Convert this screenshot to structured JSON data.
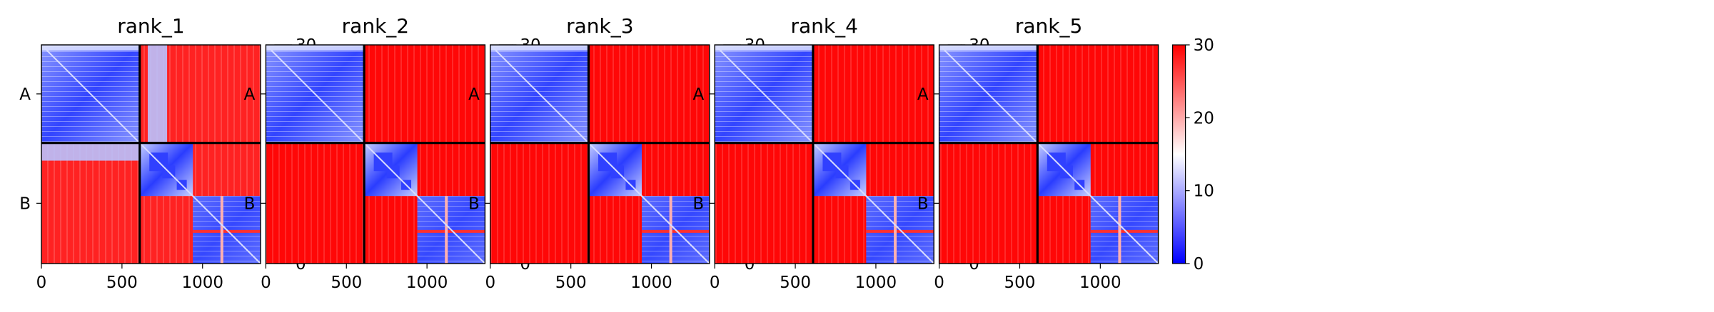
{
  "chart_data": [
    {
      "type": "heatmap",
      "title": "rank_1",
      "x_ticks": [
        0,
        500,
        1000
      ],
      "xlim": [
        0,
        1360
      ],
      "chain_labels": [
        "A",
        "B"
      ],
      "chain_boundary": 610,
      "chain_b_domains": [
        [
          610,
          940
        ],
        [
          940,
          1360
        ]
      ],
      "colorbar": {
        "range": [
          0,
          30
        ],
        "ticks": [
          0,
          10,
          20,
          30
        ],
        "colors": [
          "#0000ff",
          "#ffffff",
          "#ff0000"
        ]
      },
      "inter_chain_mean": 25,
      "strong_interface": [
        {
          "rows": [
            610,
            720
          ],
          "cols": [
            0,
            610
          ]
        },
        {
          "rows": [
            0,
            610
          ],
          "cols": [
            660,
            780
          ]
        }
      ]
    },
    {
      "type": "heatmap",
      "title": "rank_2",
      "x_ticks": [
        0,
        500,
        1000
      ],
      "xlim": [
        0,
        1360
      ],
      "chain_labels": [
        "A",
        "B"
      ],
      "chain_boundary": 610,
      "chain_b_domains": [
        [
          610,
          940
        ],
        [
          940,
          1360
        ]
      ],
      "colorbar": {
        "range": [
          0,
          30
        ],
        "ticks": [
          0,
          10,
          20,
          30
        ],
        "colors": [
          "#0000ff",
          "#ffffff",
          "#ff0000"
        ]
      },
      "inter_chain_mean": 29
    },
    {
      "type": "heatmap",
      "title": "rank_3",
      "x_ticks": [
        0,
        500,
        1000
      ],
      "xlim": [
        0,
        1360
      ],
      "chain_labels": [
        "A",
        "B"
      ],
      "chain_boundary": 610,
      "chain_b_domains": [
        [
          610,
          940
        ],
        [
          940,
          1360
        ]
      ],
      "colorbar": {
        "range": [
          0,
          30
        ],
        "ticks": [
          0,
          10,
          20,
          30
        ],
        "colors": [
          "#0000ff",
          "#ffffff",
          "#ff0000"
        ]
      },
      "inter_chain_mean": 29
    },
    {
      "type": "heatmap",
      "title": "rank_4",
      "x_ticks": [
        0,
        500,
        1000
      ],
      "xlim": [
        0,
        1360
      ],
      "chain_labels": [
        "A",
        "B"
      ],
      "chain_boundary": 610,
      "chain_b_domains": [
        [
          610,
          940
        ],
        [
          940,
          1360
        ]
      ],
      "colorbar": {
        "range": [
          0,
          30
        ],
        "ticks": [
          0,
          10,
          20,
          30
        ],
        "colors": [
          "#0000ff",
          "#ffffff",
          "#ff0000"
        ]
      },
      "inter_chain_mean": 29
    },
    {
      "type": "heatmap",
      "title": "rank_5",
      "x_ticks": [
        0,
        500,
        1000
      ],
      "xlim": [
        0,
        1360
      ],
      "chain_labels": [
        "A",
        "B"
      ],
      "chain_boundary": 610,
      "chain_b_domains": [
        [
          610,
          940
        ],
        [
          940,
          1360
        ]
      ],
      "colorbar": {
        "range": [
          0,
          30
        ],
        "ticks": [
          0,
          10,
          20,
          30
        ],
        "colors": [
          "#0000ff",
          "#ffffff",
          "#ff0000"
        ]
      },
      "inter_chain_mean": 29
    }
  ]
}
